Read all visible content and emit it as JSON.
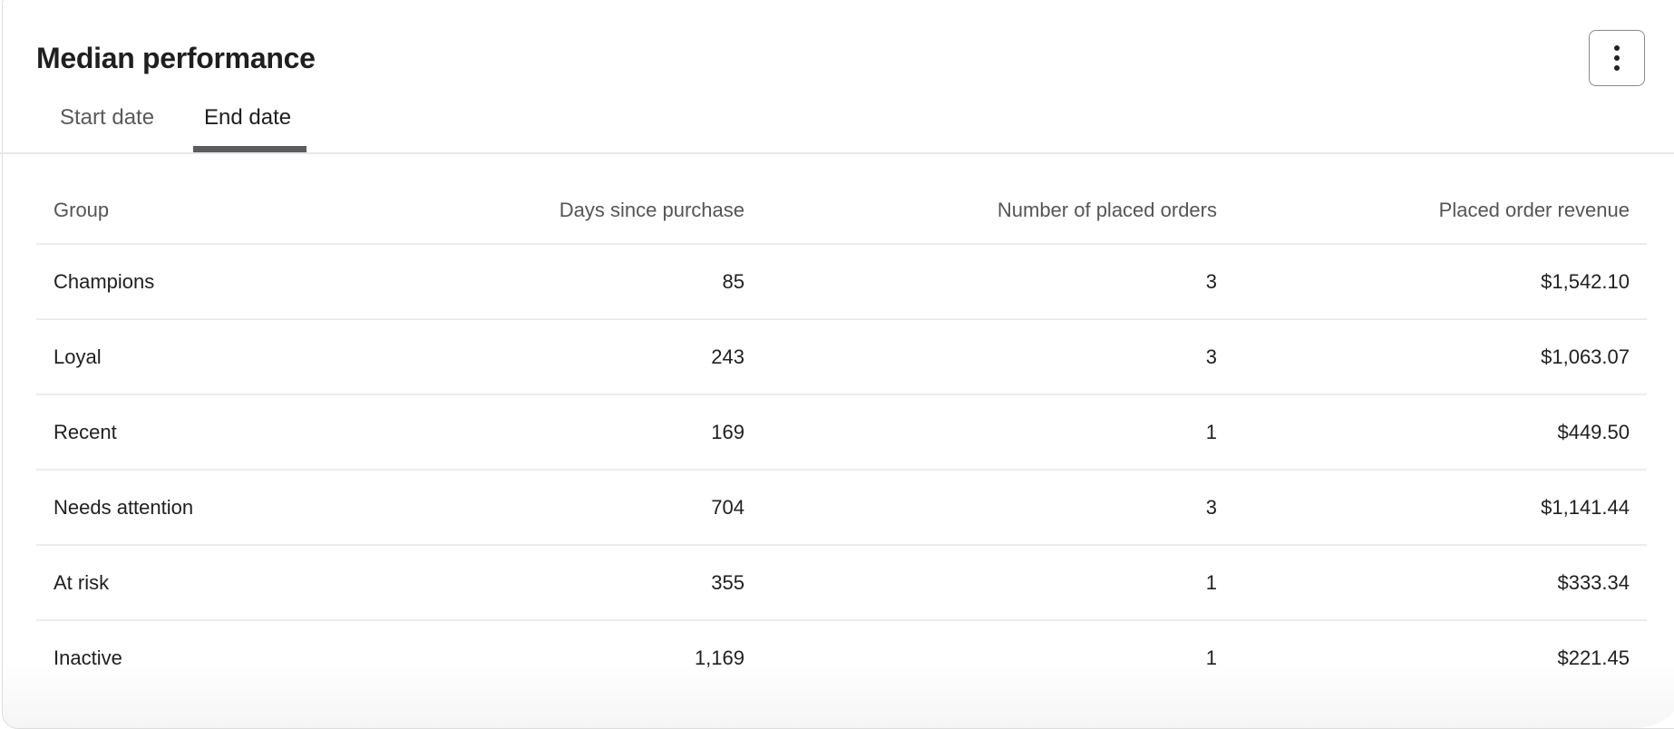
{
  "header": {
    "title": "Median performance",
    "menu_icon": "kebab-vertical-icon"
  },
  "tabs": [
    {
      "label": "Start date",
      "active": false
    },
    {
      "label": "End date",
      "active": true
    }
  ],
  "table": {
    "columns": [
      "Group",
      "Days since purchase",
      "Number of placed orders",
      "Placed order revenue"
    ],
    "rows": [
      [
        "Champions",
        "85",
        "3",
        "$1,542.10"
      ],
      [
        "Loyal",
        "243",
        "3",
        "$1,063.07"
      ],
      [
        "Recent",
        "169",
        "1",
        "$449.50"
      ],
      [
        "Needs attention",
        "704",
        "3",
        "$1,141.44"
      ],
      [
        "At risk",
        "355",
        "1",
        "$333.34"
      ],
      [
        "Inactive",
        "1,169",
        "1",
        "$221.45"
      ]
    ]
  }
}
